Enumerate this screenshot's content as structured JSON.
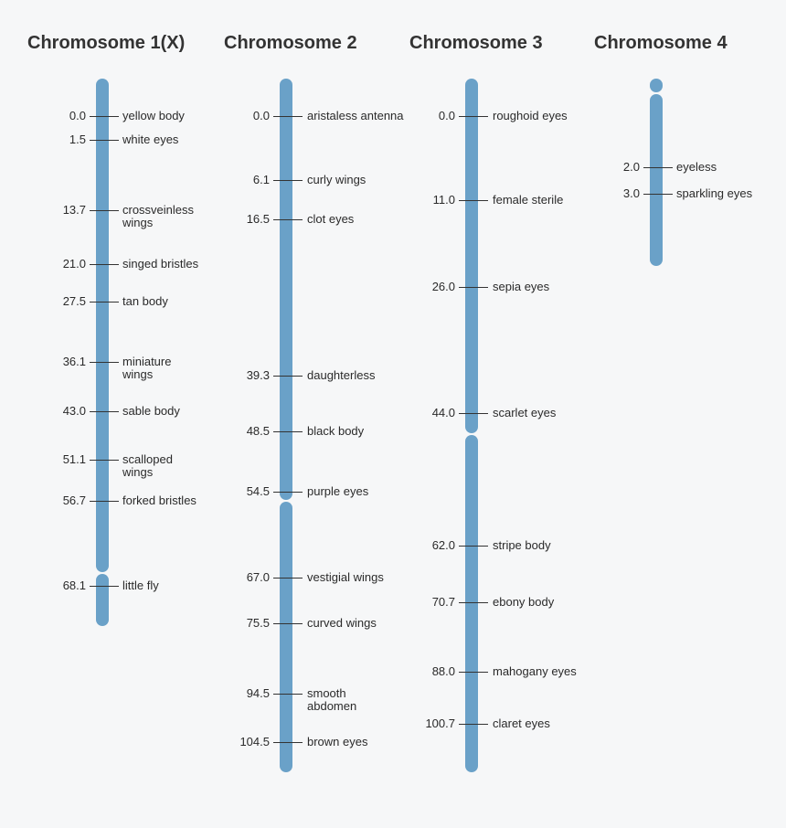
{
  "colors": {
    "chromosome": "#6aa1c8",
    "background": "#f6f7f8",
    "text": "#2a2a2a"
  },
  "chromosomes": [
    {
      "title": "Chromosome 1(X)",
      "loci": [
        {
          "pos": "0.0",
          "gene": "yellow body",
          "gene2": ""
        },
        {
          "pos": "1.5",
          "gene": "white eyes",
          "gene2": ""
        },
        {
          "pos": "13.7",
          "gene": "crossveinless",
          "gene2": "wings"
        },
        {
          "pos": "21.0",
          "gene": "singed bristles",
          "gene2": ""
        },
        {
          "pos": "27.5",
          "gene": "tan body",
          "gene2": ""
        },
        {
          "pos": "36.1",
          "gene": "miniature",
          "gene2": "wings"
        },
        {
          "pos": "43.0",
          "gene": "sable body",
          "gene2": ""
        },
        {
          "pos": "51.1",
          "gene": "scalloped",
          "gene2": "wings"
        },
        {
          "pos": "56.7",
          "gene": "forked bristles",
          "gene2": ""
        },
        {
          "pos": "68.1",
          "gene": "little fly",
          "gene2": ""
        }
      ]
    },
    {
      "title": "Chromosome 2",
      "loci": [
        {
          "pos": "0.0",
          "gene": "aristaless antenna",
          "gene2": ""
        },
        {
          "pos": "6.1",
          "gene": "curly wings",
          "gene2": ""
        },
        {
          "pos": "16.5",
          "gene": "clot eyes",
          "gene2": ""
        },
        {
          "pos": "39.3",
          "gene": "daughterless",
          "gene2": ""
        },
        {
          "pos": "48.5",
          "gene": "black body",
          "gene2": ""
        },
        {
          "pos": "54.5",
          "gene": "purple eyes",
          "gene2": ""
        },
        {
          "pos": "67.0",
          "gene": "vestigial wings",
          "gene2": ""
        },
        {
          "pos": "75.5",
          "gene": "curved wings",
          "gene2": ""
        },
        {
          "pos": "94.5",
          "gene": "smooth",
          "gene2": "abdomen"
        },
        {
          "pos": "104.5",
          "gene": "brown eyes",
          "gene2": ""
        }
      ]
    },
    {
      "title": "Chromosome 3",
      "loci": [
        {
          "pos": "0.0",
          "gene": "roughoid eyes",
          "gene2": ""
        },
        {
          "pos": "11.0",
          "gene": "female sterile",
          "gene2": ""
        },
        {
          "pos": "26.0",
          "gene": "sepia eyes",
          "gene2": ""
        },
        {
          "pos": "44.0",
          "gene": "scarlet eyes",
          "gene2": ""
        },
        {
          "pos": "62.0",
          "gene": "stripe body",
          "gene2": ""
        },
        {
          "pos": "70.7",
          "gene": "ebony body",
          "gene2": ""
        },
        {
          "pos": "88.0",
          "gene": "mahogany eyes",
          "gene2": ""
        },
        {
          "pos": "100.7",
          "gene": "claret eyes",
          "gene2": ""
        }
      ]
    },
    {
      "title": "Chromosome 4",
      "loci": [
        {
          "pos": "2.0",
          "gene": "eyeless",
          "gene2": ""
        },
        {
          "pos": "3.0",
          "gene": "sparkling eyes",
          "gene2": ""
        }
      ]
    }
  ]
}
